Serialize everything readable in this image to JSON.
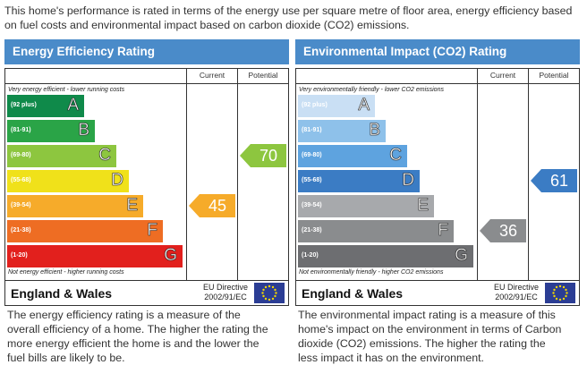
{
  "intro": "This home's performance is rated in terms of the energy use per square metre of floor area, energy efficiency based on fuel costs and environmental impact based on carbon dioxide (CO2) emissions.",
  "column_labels": {
    "current": "Current",
    "potential": "Potential"
  },
  "colors": {
    "header": "#4a8bc9"
  },
  "chart_data": [
    {
      "type": "bar",
      "title": "Energy Efficiency Rating",
      "top_note": "Very energy efficient - lower running costs",
      "bottom_note": "Not energy efficient - higher running costs",
      "bands": [
        {
          "range": "(92 plus)",
          "letter": "A",
          "color": "#0f8a4a"
        },
        {
          "range": "(81-91)",
          "letter": "B",
          "color": "#2aa447"
        },
        {
          "range": "(69-80)",
          "letter": "C",
          "color": "#8dc63f"
        },
        {
          "range": "(55-68)",
          "letter": "D",
          "color": "#f0e11a"
        },
        {
          "range": "(39-54)",
          "letter": "E",
          "color": "#f6ab2a"
        },
        {
          "range": "(21-38)",
          "letter": "F",
          "color": "#ee6d23"
        },
        {
          "range": "(1-20)",
          "letter": "G",
          "color": "#e2201d"
        }
      ],
      "current": {
        "value": 45,
        "band": "E",
        "color": "#f6ab2a"
      },
      "potential": {
        "value": 70,
        "band": "C",
        "color": "#8dc63f"
      },
      "country": "England & Wales",
      "directive": [
        "EU Directive",
        "2002/91/EC"
      ],
      "description": "The energy efficiency rating is a measure of the overall efficiency of a home. The higher the rating the more energy efficient the home is and the lower the fuel bills are likely to be."
    },
    {
      "type": "bar",
      "title": "Environmental Impact (CO2) Rating",
      "top_note": "Very environmentally friendly - lower CO2 emissions",
      "bottom_note": "Not environmentally friendly - higher CO2 emissions",
      "bands": [
        {
          "range": "(92 plus)",
          "letter": "A",
          "color": "#c9dff4"
        },
        {
          "range": "(81-91)",
          "letter": "B",
          "color": "#8ec1ea"
        },
        {
          "range": "(69-80)",
          "letter": "C",
          "color": "#5ea3df"
        },
        {
          "range": "(55-68)",
          "letter": "D",
          "color": "#3b7cc4"
        },
        {
          "range": "(39-54)",
          "letter": "E",
          "color": "#a7a9ac"
        },
        {
          "range": "(21-38)",
          "letter": "F",
          "color": "#8a8c8e"
        },
        {
          "range": "(1-20)",
          "letter": "G",
          "color": "#6d6e71"
        }
      ],
      "current": {
        "value": 36,
        "band": "F",
        "color": "#8a8c8e"
      },
      "potential": {
        "value": 61,
        "band": "D",
        "color": "#3b7cc4"
      },
      "country": "England & Wales",
      "directive": [
        "EU Directive",
        "2002/91/EC"
      ],
      "description": "The environmental impact rating is a measure of this home's impact on the environment in terms of Carbon dioxide (CO2) emissions. The higher the rating the less impact it has on the environment."
    }
  ]
}
